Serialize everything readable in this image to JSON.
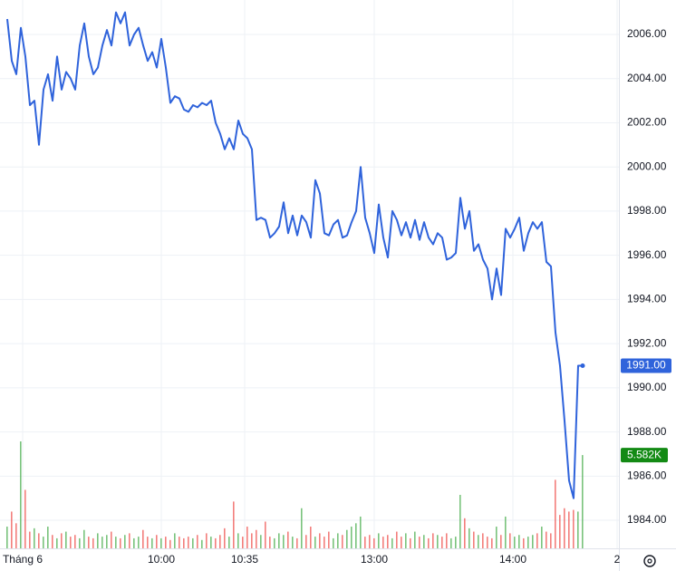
{
  "chart_data": {
    "type": "line",
    "xlim": [
      -1.6,
      135
    ],
    "xticks": [
      {
        "value": 3.4,
        "label": "Tháng 6"
      },
      {
        "value": 34,
        "label": "10:00"
      },
      {
        "value": 52.4,
        "label": "10:35"
      },
      {
        "value": 81,
        "label": "13:00"
      },
      {
        "value": 111.6,
        "label": "14:00"
      },
      {
        "value": 134.6,
        "label": "2"
      }
    ],
    "ylim": [
      1982.73,
      2007.56
    ],
    "yticks": [
      {
        "value": 1984,
        "label": "1984.00"
      },
      {
        "value": 1986,
        "label": "1986.00"
      },
      {
        "value": 1988,
        "label": "1988.00"
      },
      {
        "value": 1990,
        "label": "1990.00"
      },
      {
        "value": 1992,
        "label": "1992.00"
      },
      {
        "value": 1994,
        "label": "1994.00"
      },
      {
        "value": 1996,
        "label": "1996.00"
      },
      {
        "value": 1998,
        "label": "1998.00"
      },
      {
        "value": 2000,
        "label": "2000.00"
      },
      {
        "value": 2002,
        "label": "2002.00"
      },
      {
        "value": 2004,
        "label": "2004.00"
      },
      {
        "value": 2006,
        "label": "2006.00"
      }
    ],
    "grid": true,
    "series": [
      {
        "kind": "price",
        "color": "#2f63db",
        "values": [
          2006.7,
          2004.8,
          2004.2,
          2006.3,
          2005.0,
          2002.8,
          2003.0,
          2001.0,
          2003.5,
          2004.2,
          2003.0,
          2005.0,
          2003.5,
          2004.3,
          2004.0,
          2003.5,
          2005.5,
          2006.5,
          2005.0,
          2004.2,
          2004.5,
          2005.5,
          2006.2,
          2005.5,
          2007.0,
          2006.5,
          2007.0,
          2005.5,
          2006.0,
          2006.3,
          2005.5,
          2004.8,
          2005.2,
          2004.5,
          2005.8,
          2004.5,
          2002.9,
          2003.2,
          2003.1,
          2002.6,
          2002.5,
          2002.8,
          2002.7,
          2002.9,
          2002.8,
          2003.0,
          2002.0,
          2001.5,
          2000.8,
          2001.3,
          2000.8,
          2002.1,
          2001.5,
          2001.3,
          2000.8,
          1997.6,
          1997.7,
          1997.6,
          1996.8,
          1997.0,
          1997.3,
          1998.4,
          1997.0,
          1997.8,
          1996.9,
          1997.8,
          1997.5,
          1996.8,
          1999.4,
          1998.8,
          1997.0,
          1996.9,
          1997.4,
          1997.6,
          1996.8,
          1996.9,
          1997.5,
          1998.0,
          2000.0,
          1997.7,
          1997.0,
          1996.1,
          1998.3,
          1996.8,
          1995.9,
          1998.0,
          1997.6,
          1996.9,
          1997.5,
          1996.8,
          1997.6,
          1996.7,
          1997.5,
          1996.8,
          1996.5,
          1997.0,
          1996.8,
          1995.8,
          1995.9,
          1996.1,
          1998.6,
          1997.2,
          1998.0,
          1996.2,
          1996.5,
          1995.8,
          1995.4,
          1994.0,
          1995.4,
          1994.2,
          1997.2,
          1996.8,
          1997.2,
          1997.7,
          1996.2,
          1997.0,
          1997.5,
          1997.2,
          1997.5,
          1995.7,
          1995.5,
          1992.5,
          1991.0,
          1988.5,
          1985.8,
          1985.0,
          1991.0,
          1991.0
        ],
        "value_labels": [
          null,
          null,
          null,
          null,
          null,
          null,
          null,
          null,
          null,
          null,
          null,
          null,
          null,
          null,
          null,
          null,
          null,
          null,
          null,
          null,
          null,
          null,
          null,
          null,
          null,
          null,
          null,
          null,
          null,
          null,
          null,
          null,
          null,
          null,
          null,
          null,
          null,
          null,
          null,
          null,
          null,
          null,
          null,
          null,
          null,
          null,
          null,
          null,
          null,
          null,
          null,
          null,
          null,
          null,
          null,
          null,
          null,
          null,
          null,
          null,
          null,
          null,
          null,
          null,
          null,
          null,
          null,
          null,
          null,
          null,
          null,
          null,
          null,
          null,
          null,
          null,
          null,
          null,
          null,
          null,
          null,
          null,
          null,
          null,
          null,
          null,
          null,
          null,
          null,
          null,
          null,
          null,
          null,
          null,
          null,
          null,
          null,
          null,
          null,
          null,
          null,
          null,
          null,
          null,
          null,
          null,
          null,
          null,
          null,
          null,
          null,
          null,
          null,
          null,
          null,
          null,
          null,
          null,
          null,
          null,
          null,
          null,
          null,
          null,
          null,
          null,
          null,
          "1991.00"
        ]
      },
      {
        "kind": "volume",
        "up_color": "#4caf50",
        "down_color": "#ef5350",
        "badge_color": "#138a14",
        "values": [
          1300,
          2200,
          1500,
          6400,
          3500,
          1000,
          1200,
          900,
          700,
          1300,
          800,
          600,
          900,
          1000,
          700,
          800,
          600,
          1100,
          700,
          600,
          900,
          700,
          800,
          1000,
          700,
          600,
          800,
          900,
          600,
          700,
          1100,
          700,
          600,
          800,
          600,
          700,
          500,
          900,
          700,
          600,
          700,
          600,
          800,
          500,
          900,
          700,
          600,
          800,
          1200,
          700,
          2800,
          900,
          700,
          1300,
          900,
          1100,
          800,
          1600,
          700,
          600,
          900,
          800,
          1000,
          700,
          600,
          2400,
          800,
          1300,
          700,
          900,
          700,
          1000,
          600,
          900,
          800,
          1100,
          1300,
          1500,
          1900,
          700,
          800,
          600,
          900,
          700,
          800,
          600,
          1000,
          700,
          900,
          600,
          1000,
          700,
          800,
          600,
          900,
          800,
          700,
          900,
          600,
          700,
          3200,
          1800,
          1200,
          1000,
          800,
          900,
          700,
          600,
          1300,
          800,
          1900,
          900,
          700,
          800,
          600,
          700,
          800,
          900,
          1300,
          1000,
          900,
          4100,
          2000,
          2400,
          2200,
          2300,
          2200,
          5582
        ],
        "value_labels": [
          null,
          null,
          null,
          null,
          null,
          null,
          null,
          null,
          null,
          null,
          null,
          null,
          null,
          null,
          null,
          null,
          null,
          null,
          null,
          null,
          null,
          null,
          null,
          null,
          null,
          null,
          null,
          null,
          null,
          null,
          null,
          null,
          null,
          null,
          null,
          null,
          null,
          null,
          null,
          null,
          null,
          null,
          null,
          null,
          null,
          null,
          null,
          null,
          null,
          null,
          null,
          null,
          null,
          null,
          null,
          null,
          null,
          null,
          null,
          null,
          null,
          null,
          null,
          null,
          null,
          null,
          null,
          null,
          null,
          null,
          null,
          null,
          null,
          null,
          null,
          null,
          null,
          null,
          null,
          null,
          null,
          null,
          null,
          null,
          null,
          null,
          null,
          null,
          null,
          null,
          null,
          null,
          null,
          null,
          null,
          null,
          null,
          null,
          null,
          null,
          null,
          null,
          null,
          null,
          null,
          null,
          null,
          null,
          null,
          null,
          null,
          null,
          null,
          null,
          null,
          null,
          null,
          null,
          null,
          null,
          null,
          null,
          null,
          null,
          null,
          null,
          null,
          "5.582K"
        ]
      }
    ]
  }
}
